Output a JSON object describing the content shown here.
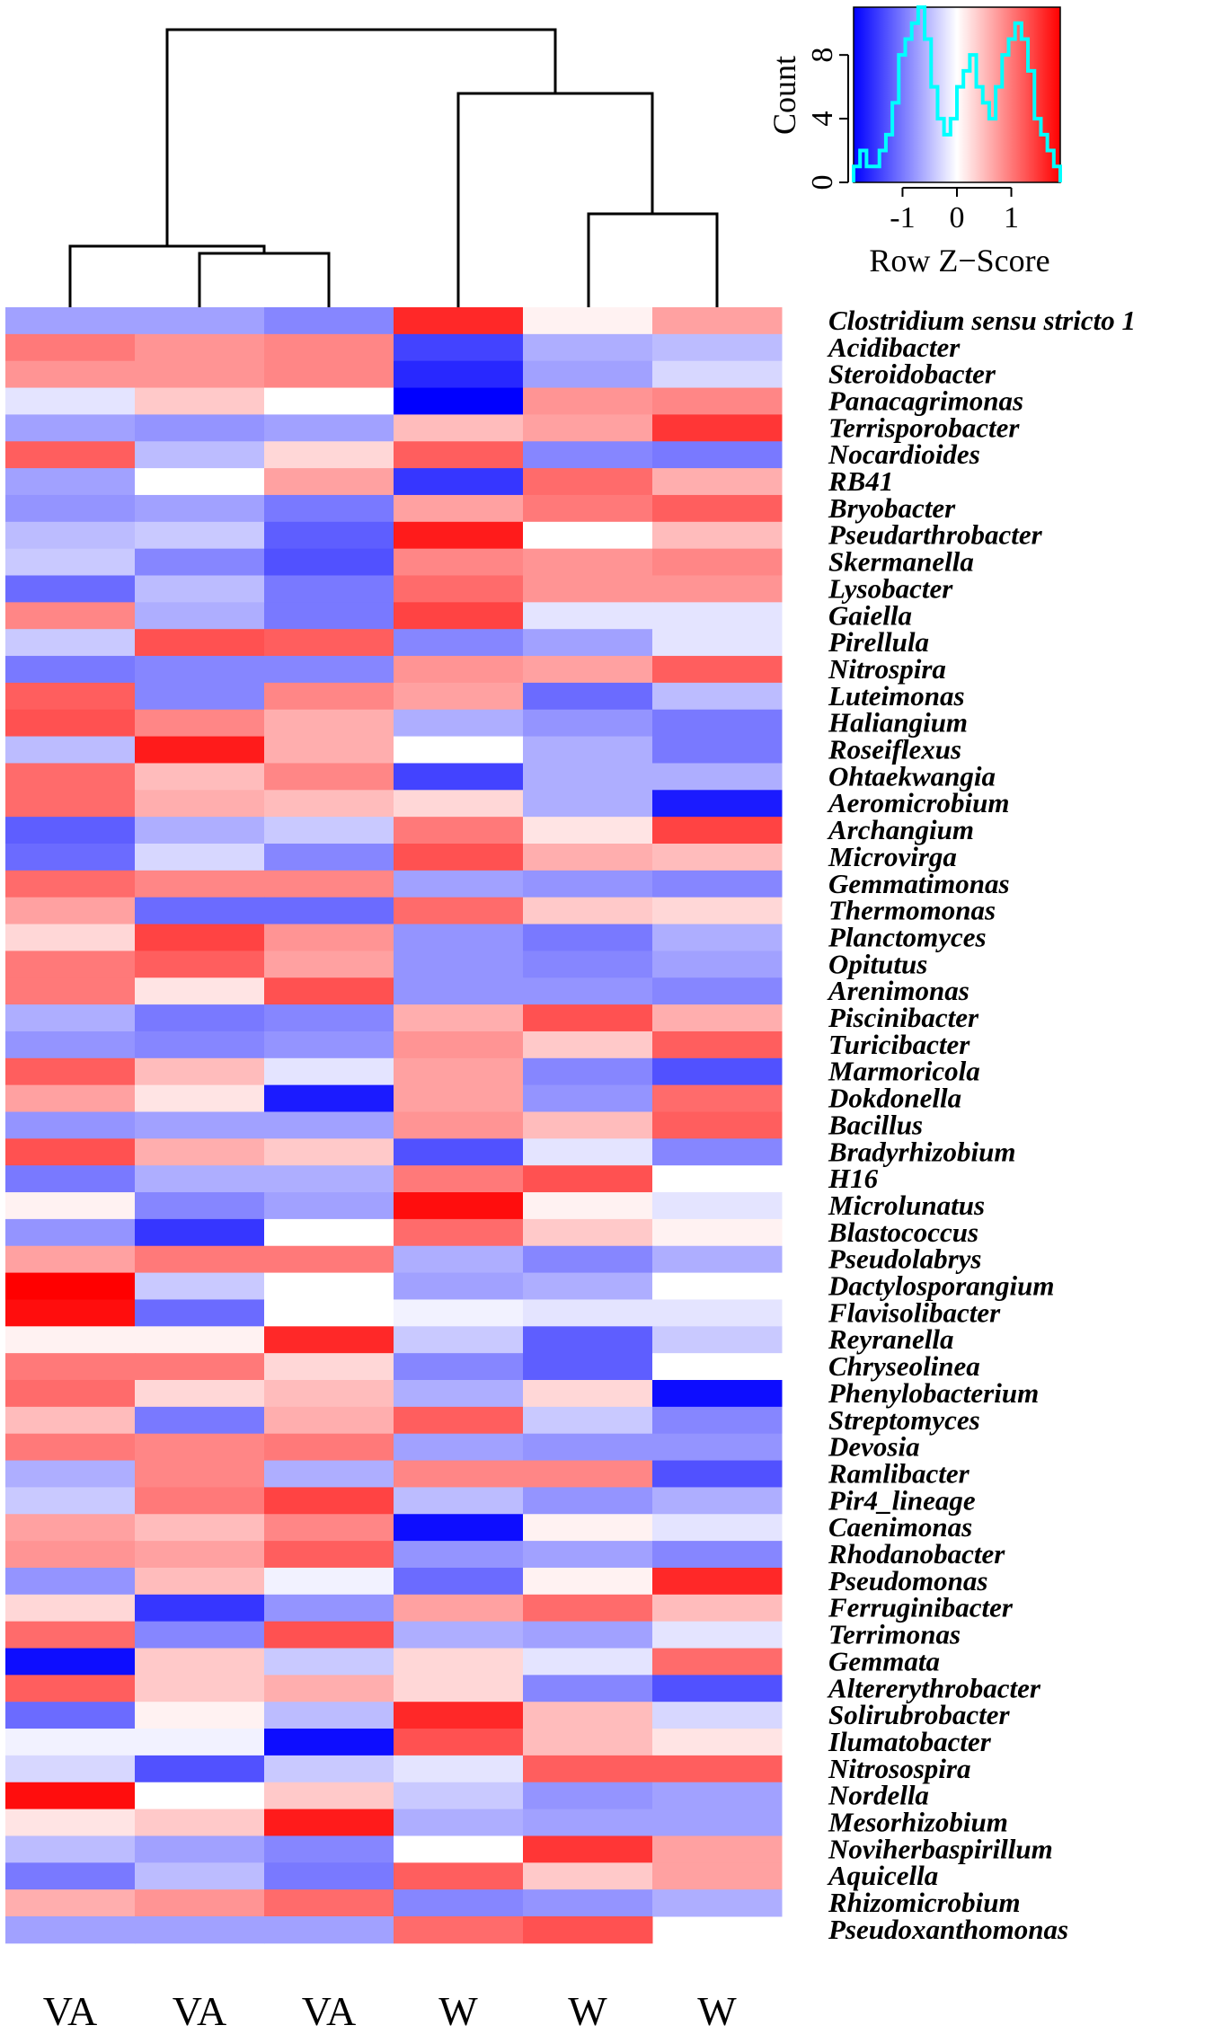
{
  "chart_data": {
    "type": "heatmap",
    "columns": [
      "VA",
      "VA",
      "VA",
      "W",
      "W",
      "W"
    ],
    "rows": [
      "Clostridium sensu stricto 1",
      "Acidibacter",
      "Steroidobacter",
      "Panacagrimonas",
      "Terrisporobacter",
      "Nocardioides",
      "RB41",
      "Bryobacter",
      "Pseudarthrobacter",
      "Skermanella",
      "Lysobacter",
      "Gaiella",
      "Pirellula",
      "Nitrospira",
      "Luteimonas",
      "Haliangium",
      "Roseiflexus",
      "Ohtaekwangia",
      "Aeromicrobium",
      "Archangium",
      "Microvirga",
      "Gemmatimonas",
      "Thermomonas",
      "Planctomyces",
      "Opitutus",
      "Arenimonas",
      "Piscinibacter",
      "Turicibacter",
      "Marmoricola",
      "Dokdonella",
      "Bacillus",
      "Bradyrhizobium",
      "H16",
      "Microlunatus",
      "Blastococcus",
      "Pseudolabrys",
      "Dactylosporangium",
      "Flavisolibacter",
      "Reyranella",
      "Chryseolinea",
      "Phenylobacterium",
      "Streptomyces",
      "Devosia",
      "Ramlibacter",
      "Pir4_lineage",
      "Caenimonas",
      "Rhodanobacter",
      "Pseudomonas",
      "Ferruginibacter",
      "Terrimonas",
      "Gemmata",
      "Altererythrobacter",
      "Solirubrobacter",
      "Ilumatobacter",
      "Nitrosospira",
      "Nordella",
      "Mesorhizobium",
      "Noviherbaspirillum",
      "Aquicella",
      "Rhizomicrobium",
      "Pseudoxanthomonas"
    ],
    "values": [
      [
        -0.7,
        -0.7,
        -0.9,
        1.6,
        0.1,
        0.7
      ],
      [
        1.0,
        0.8,
        0.9,
        -1.4,
        -0.6,
        -0.5
      ],
      [
        0.8,
        0.8,
        0.9,
        -1.6,
        -0.7,
        -0.3
      ],
      [
        -0.2,
        0.4,
        0.0,
        -1.9,
        0.8,
        0.9
      ],
      [
        -0.7,
        -0.8,
        -0.7,
        0.5,
        0.7,
        1.5
      ],
      [
        1.2,
        -0.5,
        0.3,
        1.2,
        -0.9,
        -1.0
      ],
      [
        -0.7,
        0.0,
        0.7,
        -1.5,
        1.1,
        0.6
      ],
      [
        -0.8,
        -0.7,
        -1.0,
        0.7,
        1.0,
        1.2
      ],
      [
        -0.5,
        -0.4,
        -1.2,
        1.7,
        0.0,
        0.5
      ],
      [
        -0.4,
        -0.9,
        -1.3,
        0.9,
        0.8,
        0.9
      ],
      [
        -1.1,
        -0.5,
        -1.0,
        1.1,
        0.8,
        0.8
      ],
      [
        0.9,
        -0.6,
        -1.0,
        1.4,
        -0.2,
        -0.2
      ],
      [
        -0.4,
        1.3,
        1.2,
        -0.9,
        -0.7,
        -0.2
      ],
      [
        -1.0,
        -0.9,
        -0.9,
        0.8,
        0.7,
        1.2
      ],
      [
        1.2,
        -0.9,
        0.9,
        0.7,
        -1.1,
        -0.5
      ],
      [
        1.3,
        0.9,
        0.6,
        -0.6,
        -0.8,
        -1.0
      ],
      [
        -0.5,
        1.7,
        0.6,
        0.0,
        -0.6,
        -1.0
      ],
      [
        1.1,
        0.5,
        0.9,
        -1.4,
        -0.6,
        -0.6
      ],
      [
        1.1,
        0.6,
        0.5,
        0.3,
        -0.6,
        -1.7
      ],
      [
        -1.2,
        -0.6,
        -0.4,
        1.0,
        0.2,
        1.4
      ],
      [
        -1.1,
        -0.3,
        -0.9,
        1.3,
        0.6,
        0.5
      ],
      [
        1.1,
        0.9,
        0.9,
        -0.7,
        -0.8,
        -0.9
      ],
      [
        0.7,
        -1.1,
        -1.1,
        1.1,
        0.4,
        0.3
      ],
      [
        0.3,
        1.4,
        0.8,
        -0.8,
        -1.0,
        -0.6
      ],
      [
        1.0,
        1.2,
        0.7,
        -0.8,
        -0.9,
        -0.7
      ],
      [
        1.0,
        0.2,
        1.3,
        -0.8,
        -0.8,
        -0.9
      ],
      [
        -0.6,
        -1.0,
        -0.9,
        0.6,
        1.3,
        0.6
      ],
      [
        -0.8,
        -0.9,
        -0.8,
        0.8,
        0.4,
        1.2
      ],
      [
        1.2,
        0.5,
        -0.2,
        0.7,
        -0.9,
        -1.3
      ],
      [
        0.7,
        0.2,
        -1.7,
        0.7,
        -0.8,
        1.1
      ],
      [
        -0.8,
        -0.7,
        -0.7,
        0.8,
        0.5,
        1.2
      ],
      [
        1.3,
        0.6,
        0.4,
        -1.3,
        -0.2,
        -0.9
      ],
      [
        -1.0,
        -0.6,
        -0.6,
        1.0,
        1.3,
        0.0
      ],
      [
        0.1,
        -0.9,
        -0.7,
        1.8,
        0.1,
        -0.2
      ],
      [
        -0.8,
        -1.5,
        0.0,
        1.1,
        0.4,
        0.1
      ],
      [
        0.7,
        1.0,
        1.0,
        -0.6,
        -0.9,
        -0.6
      ],
      [
        1.9,
        -0.4,
        0.0,
        -0.7,
        -0.6,
        0.0
      ],
      [
        1.8,
        -1.1,
        0.0,
        -0.1,
        -0.2,
        -0.2
      ],
      [
        0.1,
        0.1,
        1.6,
        -0.4,
        -1.2,
        -0.4
      ],
      [
        1.0,
        1.0,
        0.3,
        -0.9,
        -1.2,
        0.0
      ],
      [
        1.1,
        0.3,
        0.5,
        -0.6,
        0.3,
        -1.8
      ],
      [
        0.5,
        -1.0,
        0.6,
        1.2,
        -0.4,
        -0.9
      ],
      [
        1.0,
        0.9,
        1.0,
        -0.7,
        -0.8,
        -0.8
      ],
      [
        -0.6,
        0.9,
        -0.6,
        0.9,
        0.9,
        -1.3
      ],
      [
        -0.4,
        1.0,
        1.4,
        -0.5,
        -0.8,
        -0.6
      ],
      [
        0.7,
        0.5,
        0.9,
        -1.8,
        0.1,
        -0.2
      ],
      [
        0.8,
        0.7,
        1.2,
        -0.8,
        -0.7,
        -0.9
      ],
      [
        -0.8,
        0.5,
        -0.1,
        -1.1,
        0.1,
        1.6
      ],
      [
        0.3,
        -1.5,
        -0.8,
        0.7,
        1.1,
        0.5
      ],
      [
        1.1,
        -0.9,
        1.3,
        -0.6,
        -0.7,
        -0.2
      ],
      [
        -1.8,
        0.4,
        -0.4,
        0.3,
        -0.2,
        1.1
      ],
      [
        1.2,
        0.4,
        0.6,
        0.3,
        -0.9,
        -1.3
      ],
      [
        -1.1,
        0.1,
        -0.5,
        1.6,
        0.5,
        -0.3
      ],
      [
        -0.1,
        -0.1,
        -1.8,
        1.3,
        0.5,
        0.2
      ],
      [
        -0.3,
        -1.3,
        -0.4,
        -0.2,
        1.2,
        1.2
      ],
      [
        1.8,
        0.0,
        0.4,
        -0.4,
        -0.8,
        -0.7
      ],
      [
        0.2,
        0.4,
        1.7,
        -0.6,
        -0.7,
        -0.7
      ],
      [
        -0.5,
        -0.7,
        -0.9,
        0.0,
        1.5,
        0.7
      ],
      [
        -1.0,
        -0.5,
        -1.0,
        1.2,
        0.4,
        0.7
      ],
      [
        0.6,
        0.8,
        1.1,
        -0.9,
        -0.8,
        -0.6
      ],
      [
        -0.7,
        -0.7,
        -0.7,
        1.1,
        1.3,
        null
      ]
    ],
    "color_key": {
      "xlabel": "Row Z−Score",
      "ylabel": "Count",
      "x_ticks": [
        "-1",
        "0",
        "1"
      ],
      "x_tick_values": [
        -1,
        0,
        1
      ],
      "y_ticks": [
        "0",
        "4",
        "8"
      ],
      "y_tick_values": [
        0,
        4,
        8
      ],
      "xlim": [
        -1.9,
        1.9
      ],
      "ylim": [
        0,
        11
      ],
      "colors": {
        "low": "#0000ff",
        "mid": "#ffffff",
        "high": "#ff0000",
        "histogram": "#00ffff"
      },
      "histogram_counts": [
        1,
        2,
        1,
        1,
        2,
        3,
        5,
        8,
        9,
        10,
        11,
        9,
        6,
        4,
        3,
        4,
        6,
        7,
        8,
        6,
        5,
        4,
        6,
        8,
        9,
        10,
        9,
        7,
        4,
        3,
        2,
        1
      ]
    },
    "column_dendrogram": true,
    "legend_position": "top-right"
  }
}
